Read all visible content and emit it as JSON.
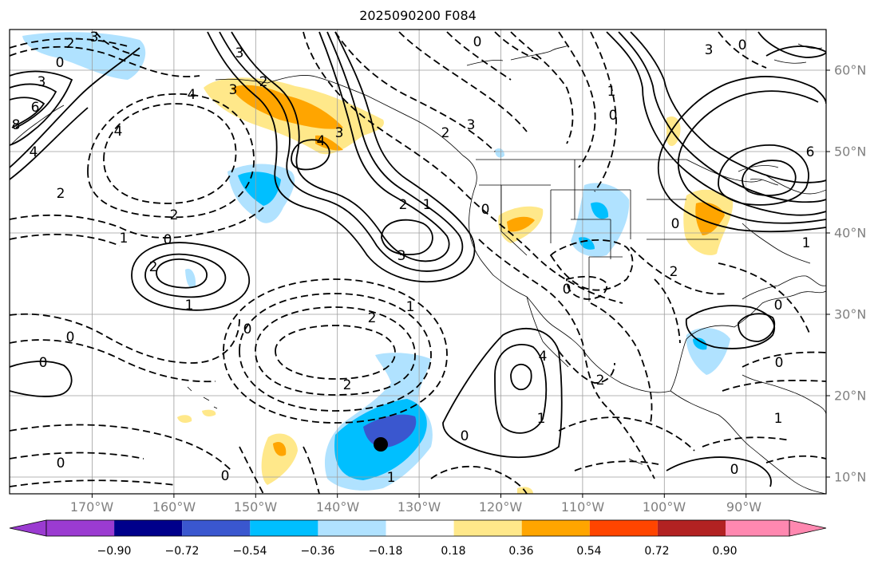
{
  "title": "2025090200 F084",
  "longitude_labels": [
    "170°W",
    "160°W",
    "150°W",
    "140°W",
    "130°W",
    "120°W",
    "110°W",
    "100°W",
    "90°W"
  ],
  "latitude_labels": [
    "60°N",
    "50°N",
    "40°N",
    "30°N",
    "20°N",
    "10°N"
  ],
  "colorbar": {
    "ticks": [
      "−0.90",
      "−0.72",
      "−0.54",
      "−0.36",
      "−0.18",
      "0.18",
      "0.36",
      "0.54",
      "0.72",
      "0.90"
    ],
    "colors": [
      "#9b3bd1",
      "#00008b",
      "#3a57cf",
      "#00bfff",
      "#b0e2ff",
      "#ffffff",
      "#ffe88a",
      "#ffa500",
      "#ff4500",
      "#b22222",
      "#ff88b0"
    ]
  },
  "contour_labels": [
    {
      "text": "2"
    },
    {
      "text": "3"
    },
    {
      "text": "0"
    },
    {
      "text": "3"
    },
    {
      "text": "6"
    },
    {
      "text": "8"
    },
    {
      "text": "4"
    },
    {
      "text": "4"
    },
    {
      "text": "2"
    },
    {
      "text": "3"
    },
    {
      "text": "3"
    },
    {
      "text": "4"
    },
    {
      "text": "3"
    },
    {
      "text": "4"
    },
    {
      "text": "3"
    },
    {
      "text": "2"
    },
    {
      "text": "0"
    },
    {
      "text": "2"
    },
    {
      "text": "2"
    },
    {
      "text": "1"
    },
    {
      "text": "1"
    },
    {
      "text": "2"
    },
    {
      "text": "3"
    },
    {
      "text": "1"
    },
    {
      "text": "0"
    },
    {
      "text": "0"
    },
    {
      "text": "0"
    },
    {
      "text": "2"
    },
    {
      "text": "1"
    },
    {
      "text": "0"
    },
    {
      "text": "0"
    },
    {
      "text": "2"
    },
    {
      "text": "0"
    },
    {
      "text": "0"
    },
    {
      "text": "2"
    },
    {
      "text": "0"
    },
    {
      "text": "4"
    },
    {
      "text": "1"
    },
    {
      "text": "1"
    },
    {
      "text": "2"
    },
    {
      "text": "1"
    },
    {
      "text": "6"
    },
    {
      "text": "0"
    },
    {
      "text": "2"
    },
    {
      "text": "0"
    },
    {
      "text": "0"
    },
    {
      "text": "0"
    },
    {
      "text": "1"
    },
    {
      "text": "0"
    },
    {
      "text": "1"
    },
    {
      "text": "0"
    },
    {
      "text": "0"
    },
    {
      "text": "3"
    }
  ]
}
